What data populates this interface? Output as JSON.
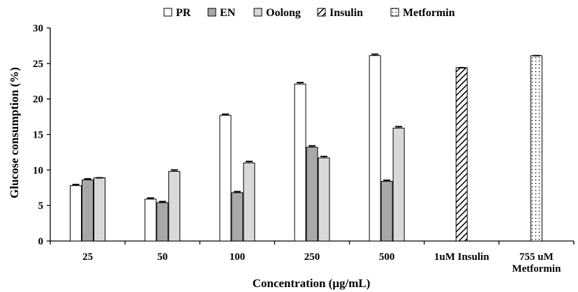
{
  "chart_data": {
    "type": "bar",
    "ylabel": "Glucose consumption (%)",
    "xlabel": "Concentration (μg/mL)",
    "ylim": [
      0,
      30
    ],
    "yticks": [
      0,
      5,
      10,
      15,
      20,
      25,
      30
    ],
    "grid": false,
    "legend_position": "top",
    "categories": [
      {
        "label": "25",
        "label2": ""
      },
      {
        "label": "50",
        "label2": ""
      },
      {
        "label": "100",
        "label2": ""
      },
      {
        "label": "250",
        "label2": ""
      },
      {
        "label": "500",
        "label2": ""
      },
      {
        "label": "1uM Insulin",
        "label2": ""
      },
      {
        "label": "755 uM",
        "label2": "Metformin"
      }
    ],
    "series": [
      {
        "name": "PR",
        "pattern": "white",
        "values": [
          7.8,
          5.9,
          17.7,
          22.1,
          26.1,
          null,
          null
        ],
        "errors": [
          0.15,
          0.15,
          0.15,
          0.2,
          0.2,
          null,
          null
        ]
      },
      {
        "name": "EN",
        "pattern": "darkgray",
        "values": [
          8.6,
          5.4,
          6.8,
          13.2,
          8.4,
          null,
          null
        ],
        "errors": [
          0.15,
          0.15,
          0.15,
          0.2,
          0.15,
          null,
          null
        ]
      },
      {
        "name": "Oolong",
        "pattern": "lightgray",
        "values": [
          8.9,
          9.8,
          11.0,
          11.7,
          15.9,
          null,
          null
        ],
        "errors": [
          0.0,
          0.2,
          0.2,
          0.2,
          0.2,
          null,
          null
        ]
      },
      {
        "name": "Insulin",
        "pattern": "hatch",
        "values": [
          null,
          null,
          null,
          null,
          null,
          24.4,
          null
        ],
        "errors": [
          null,
          null,
          null,
          null,
          null,
          0.0,
          null
        ]
      },
      {
        "name": "Metformin",
        "pattern": "dots",
        "values": [
          null,
          null,
          null,
          null,
          null,
          null,
          26.1
        ],
        "errors": [
          null,
          null,
          null,
          null,
          null,
          null,
          0.0
        ]
      }
    ],
    "colors": {
      "white": "#ffffff",
      "darkgray": "#a8a8a8",
      "lightgray": "#d9d9d9",
      "stroke": "#000000"
    }
  }
}
